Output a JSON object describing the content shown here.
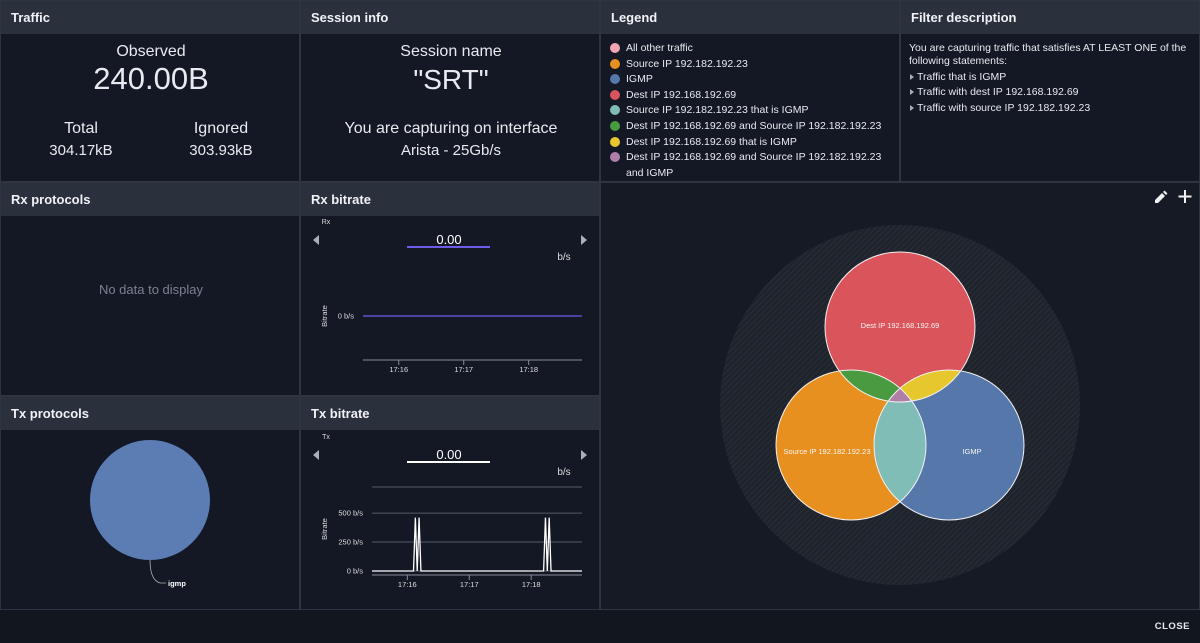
{
  "traffic": {
    "title": "Traffic",
    "observed_label": "Observed",
    "observed": "240.00B",
    "total_label": "Total",
    "total": "304.17kB",
    "ignored_label": "Ignored",
    "ignored": "303.93kB"
  },
  "session_info": {
    "title": "Session info",
    "name_label": "Session name",
    "name": "\"SRT\"",
    "interface_label": "You are capturing on interface",
    "interface": "Arista - 25Gb/s"
  },
  "legend": {
    "title": "Legend",
    "items": [
      {
        "label": "All other traffic",
        "color": "#f4a3b5"
      },
      {
        "label": "Source IP 192.182.192.23",
        "color": "#e8901f"
      },
      {
        "label": "IGMP",
        "color": "#5577aa"
      },
      {
        "label": "Dest IP 192.168.192.69",
        "color": "#d9545b"
      },
      {
        "label": "Source IP 192.182.192.23 that is IGMP",
        "color": "#80bdb6"
      },
      {
        "label": "Dest IP 192.168.192.69 and Source IP 192.182.192.23",
        "color": "#4a9a3f"
      },
      {
        "label": "Dest IP 192.168.192.69 that is IGMP",
        "color": "#e6c72e"
      },
      {
        "label": "Dest IP 192.168.192.69 and Source IP 192.182.192.23 and IGMP",
        "color": "#b07fa8"
      }
    ]
  },
  "filter_description": {
    "title": "Filter description",
    "intro": "You are capturing traffic that satisfies AT LEAST ONE of the following statements:",
    "statements": [
      "Traffic that is IGMP",
      "Traffic with dest IP 192.168.192.69",
      "Traffic with source IP 192.182.192.23"
    ]
  },
  "rx_protocols": {
    "title": "Rx protocols",
    "empty_message": "No data to display"
  },
  "rx_bitrate": {
    "title": "Rx bitrate",
    "chart": {
      "type": "line",
      "series_label": "Rx",
      "current_value": "0.00",
      "unit": "b/s",
      "y_label": "Bitrate",
      "x": [
        1035.45,
        1038.82
      ],
      "values": [
        0,
        0
      ],
      "color": "#6c5ce7",
      "xlim": [
        1035.45,
        1038.82
      ],
      "ylim": [
        -1,
        1
      ],
      "yticks": [
        {
          "value": 0,
          "label": "0 b/s"
        }
      ],
      "xticks": [
        {
          "value": 1036,
          "label": "17:16"
        },
        {
          "value": 1037,
          "label": "17:17"
        },
        {
          "value": 1038,
          "label": "17:18"
        }
      ]
    }
  },
  "tx_protocols": {
    "title": "Tx protocols",
    "chart": {
      "type": "pie",
      "categories": [
        "igmp"
      ],
      "values": [
        100
      ],
      "colors": [
        "#5b7db3"
      ]
    }
  },
  "tx_bitrate": {
    "title": "Tx bitrate",
    "chart": {
      "type": "line",
      "series_label": "Tx",
      "current_value": "0.00",
      "unit": "b/s",
      "y_label": "Bitrate",
      "x": [
        1035.43,
        1036.1,
        1036.13,
        1036.16,
        1036.19,
        1036.22,
        1038.2,
        1038.23,
        1038.26,
        1038.29,
        1038.32,
        1038.82
      ],
      "values": [
        0,
        0,
        460,
        0,
        460,
        0,
        0,
        460,
        0,
        460,
        0,
        0
      ],
      "color": "#ffffff",
      "xlim": [
        1035.43,
        1038.82
      ],
      "ylim": [
        0,
        725
      ],
      "yticks": [
        {
          "value": 0,
          "label": "0 b/s"
        },
        {
          "value": 250,
          "label": "250 b/s"
        },
        {
          "value": 500,
          "label": "500 b/s"
        }
      ],
      "xticks": [
        {
          "value": 1036,
          "label": "17:16"
        },
        {
          "value": 1037,
          "label": "17:17"
        },
        {
          "value": 1038,
          "label": "17:18"
        }
      ]
    }
  },
  "venn": {
    "labels": [
      "Dest IP 192.168.192.69",
      "Source IP 192.182.192.23",
      "IGMP"
    ]
  },
  "footer": {
    "close": "CLOSE"
  }
}
